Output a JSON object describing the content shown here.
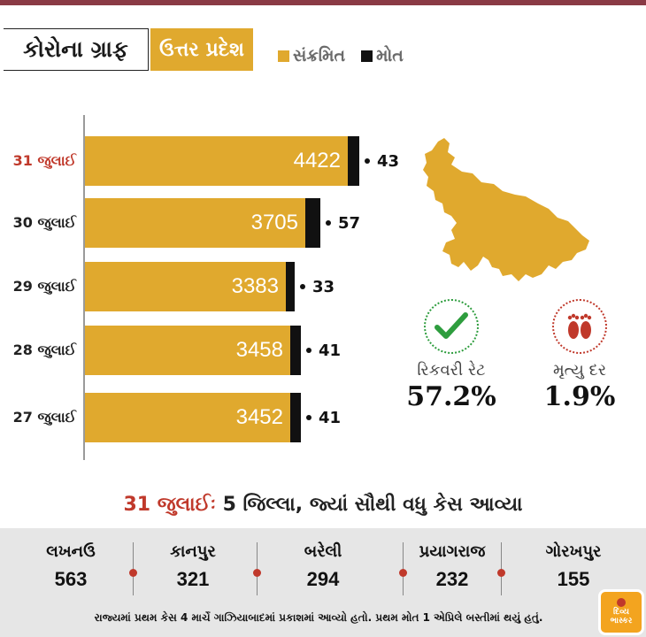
{
  "header": {
    "title": "કોરોના ગ્રાફ",
    "state": "ઉત્તર પ્રદેશ",
    "legend": [
      {
        "label": "સંક્રમિત",
        "color": "#e0a92e"
      },
      {
        "label": "મોત",
        "color": "#111111"
      }
    ]
  },
  "chart_data": {
    "type": "bar",
    "orientation": "horizontal",
    "categories": [
      "31 જુલાઈ",
      "30 જુલાઈ",
      "29 જુલાઈ",
      "28 જુલાઈ",
      "27 જુલાઈ"
    ],
    "highlight_category": "31 જુલાઈ",
    "series": [
      {
        "name": "સંક્રમિત",
        "color": "#e0a92e",
        "values": [
          4422,
          3705,
          3383,
          3458,
          3452
        ]
      },
      {
        "name": "મોત",
        "color": "#111111",
        "values": [
          43,
          57,
          33,
          41,
          41
        ]
      }
    ]
  },
  "stats": {
    "recovery": {
      "label": "રિકવરી રેટ",
      "value": "57.2%",
      "icon": "check-icon",
      "color": "#2e9d3e"
    },
    "death": {
      "label": "મૃત્યુ દર",
      "value": "1.9%",
      "icon": "footprints-icon",
      "color": "#c0392b"
    }
  },
  "districts": {
    "heading_date": "31 જુલાઈઃ",
    "heading_text": "5 જિલ્લા, જ્યાં સૌથી વધુ કેસ આવ્યા",
    "items": [
      {
        "name": "લખનઉ",
        "value": "563"
      },
      {
        "name": "કાનપુર",
        "value": "321"
      },
      {
        "name": "બરેલી",
        "value": "294"
      },
      {
        "name": "પ્રયાગરાજ",
        "value": "232"
      },
      {
        "name": "ગોરખપુર",
        "value": "155"
      }
    ],
    "footnote": "રાજ્યમાં પ્રથમ કેસ 4 માર્ચે ગાઝિયાબાદમાં પ્રકાશમાં આવ્યો હતો. પ્રથમ મોત 1 એપ્રિલે બસ્તીમાં થયું હતું."
  },
  "logo": {
    "line1": "દિવ્ય",
    "line2": "ભાસ્કર"
  }
}
